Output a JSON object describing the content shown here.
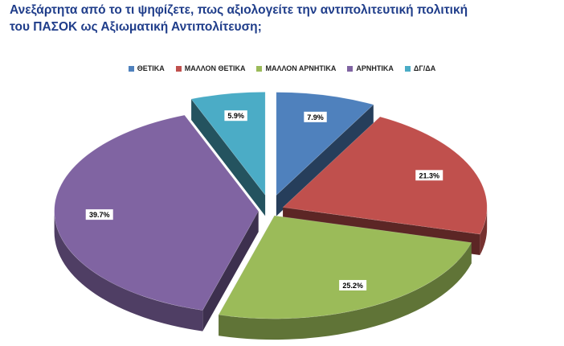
{
  "header": {
    "title_line1": "Ανεξάρτητα από το τι ψηφίζετε, πως αξιολογείτε την αντιπολιτευτική πολιτική",
    "title_line2": "του ΠΑΣΟΚ ως Αξιωματική Αντιπολίτευση;"
  },
  "chart_data": {
    "type": "pie",
    "title": "Ανεξάρτητα από το τι ψηφίζετε, πως αξιολογείτε την αντιπολιτευτική πολιτική του ΠΑΣΟΚ ως Αξιωματική Αντιπολίτευση;",
    "legend_position": "top",
    "style": "3d-exploded",
    "categories": [
      "ΘΕΤΙΚΑ",
      "ΜΑΛΛΟΝ ΘΕΤΙΚΑ",
      "ΜΑΛΛΟΝ ΑΡΝΗΤΙΚΑ",
      "ΑΡΝΗΤΙΚΑ",
      "ΔΓ/ΔΑ"
    ],
    "values": [
      7.9,
      21.3,
      25.2,
      39.7,
      5.9
    ],
    "data_labels": [
      "7.9%",
      "21.3%",
      "25.2%",
      "39.7%",
      "5.9%"
    ],
    "colors": [
      "#4f81bd",
      "#c0504d",
      "#9bbb59",
      "#8064a2",
      "#4bacc6"
    ]
  }
}
